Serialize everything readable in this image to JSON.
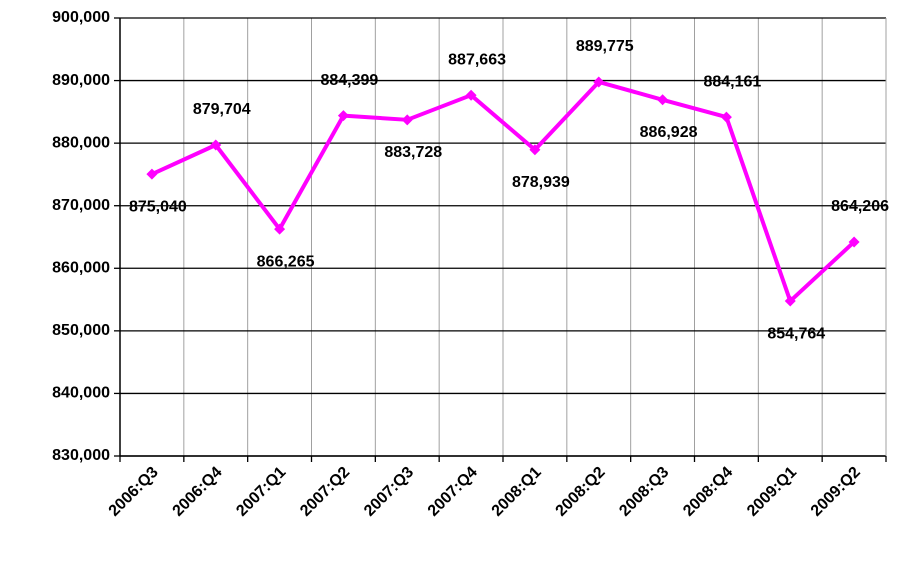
{
  "chart_data": {
    "type": "line",
    "categories": [
      "2006:Q3",
      "2006:Q4",
      "2007:Q1",
      "2007:Q2",
      "2007:Q3",
      "2007:Q4",
      "2008:Q1",
      "2008:Q2",
      "2008:Q3",
      "2008:Q4",
      "2009:Q1",
      "2009:Q2"
    ],
    "values": [
      875040,
      879704,
      866265,
      884399,
      883728,
      887663,
      878939,
      889775,
      886928,
      884161,
      854764,
      864206
    ],
    "value_labels": [
      "875,040",
      "879,704",
      "866,265",
      "884,399",
      "883,728",
      "887,663",
      "878,939",
      "889,775",
      "886,928",
      "884,161",
      "854,764",
      "864,206"
    ],
    "color": "#ff00ff",
    "ylim": [
      830000,
      900000
    ],
    "yticks": [
      {
        "value": 830000,
        "label": "830,000"
      },
      {
        "value": 840000,
        "label": "840,000"
      },
      {
        "value": 850000,
        "label": "850,000"
      },
      {
        "value": 860000,
        "label": "860,000"
      },
      {
        "value": 870000,
        "label": "870,000"
      },
      {
        "value": 880000,
        "label": "880,000"
      },
      {
        "value": 890000,
        "label": "890,000"
      },
      {
        "value": 900000,
        "label": "900,000"
      }
    ],
    "grid": true
  }
}
